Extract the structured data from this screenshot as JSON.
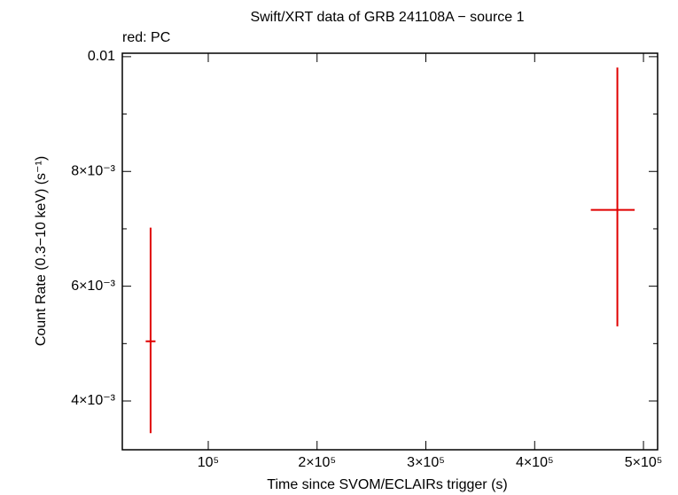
{
  "chart_data": {
    "type": "errorbar",
    "title": "Swift/XRT data of GRB 241108A − source 1",
    "annotation": "red: PC",
    "xlabel": "Time since SVOM/ECLAIRs trigger (s)",
    "ylabel": "Count Rate (0.3−10 keV) (s⁻¹)",
    "series": [
      {
        "color": "#e00000",
        "x": [
          47000,
          476000
        ],
        "xerr_minus": [
          4500,
          24400
        ],
        "xerr_plus": [
          4500,
          15900
        ],
        "values": [
          0.00504,
          0.00733
        ],
        "yerr_plus": [
          0.00198,
          0.00248
        ],
        "yerr_minus": [
          0.0016,
          0.00203
        ]
      }
    ],
    "xlim": [
      21000,
      513000
    ],
    "xticks": [
      {
        "value": 100000,
        "label": "10⁵"
      },
      {
        "value": 200000,
        "label": "2×10⁵"
      },
      {
        "value": 300000,
        "label": "3×10⁵"
      },
      {
        "value": 400000,
        "label": "4×10⁵"
      },
      {
        "value": 500000,
        "label": "5×10⁵"
      }
    ],
    "ylim": [
      0.00315,
      0.01006
    ],
    "yticks": [
      {
        "value": 0.004,
        "label": "4×10⁻³"
      },
      {
        "value": 0.006,
        "label": "6×10⁻³"
      },
      {
        "value": 0.008,
        "label": "8×10⁻³"
      },
      0.01
    ],
    "yminorticks": [
      0.005,
      0.007,
      0.009
    ]
  }
}
